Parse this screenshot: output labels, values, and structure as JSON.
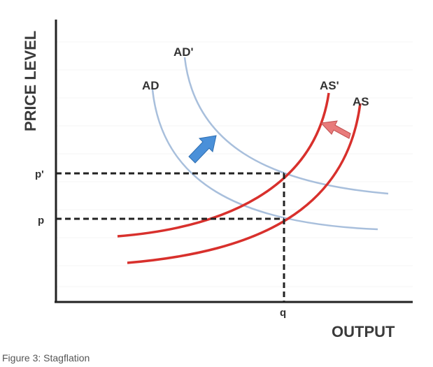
{
  "diagram": {
    "y_axis_label": "PRICE LEVEL",
    "x_axis_label": "OUTPUT",
    "curves": {
      "ad": "AD",
      "ad_prime": "AD'",
      "as": "AS",
      "as_prime": "AS'"
    },
    "ticks": {
      "p_prime": "p'",
      "p": "p",
      "q": "q"
    },
    "colors": {
      "demand": "#a8bfdc",
      "supply": "#d8302c",
      "demand_arrow": "#4a90d9",
      "supply_arrow": "#e87b7b",
      "axes": "#222222"
    }
  },
  "caption": "Figure 3: Stagflation"
}
